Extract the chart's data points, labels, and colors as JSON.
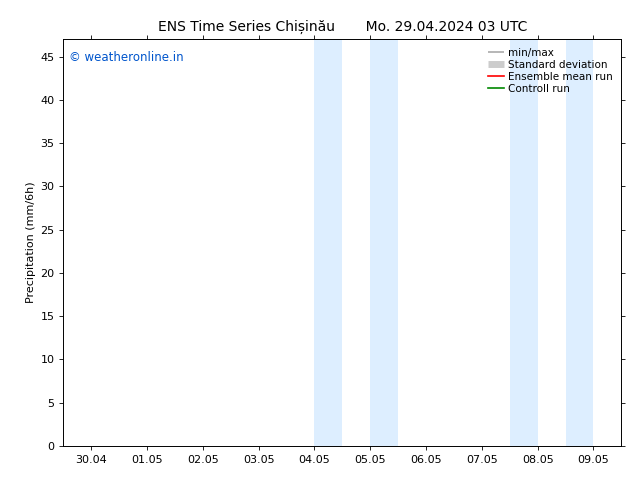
{
  "title": "ENS Time Series Chișinău       Mo. 29.04.2024 03 UTC",
  "ylabel": "Precipitation (mm/6h)",
  "xlabel": "",
  "ylim": [
    0,
    47
  ],
  "yticks": [
    0,
    5,
    10,
    15,
    20,
    25,
    30,
    35,
    40,
    45
  ],
  "xtick_labels": [
    "30.04",
    "01.05",
    "02.05",
    "03.05",
    "04.05",
    "05.05",
    "06.05",
    "07.05",
    "08.05",
    "09.05"
  ],
  "shaded_bands": [
    {
      "xmin": 4.0,
      "xmax": 4.5
    },
    {
      "xmin": 5.0,
      "xmax": 5.5
    },
    {
      "xmin": 7.5,
      "xmax": 8.0
    },
    {
      "xmin": 8.5,
      "xmax": 9.0
    }
  ],
  "shade_color": "#ddeeff",
  "watermark_text": "© weatheronline.in",
  "watermark_color": "#0055cc",
  "legend_entries": [
    {
      "label": "min/max",
      "color": "#aaaaaa",
      "lw": 1.2
    },
    {
      "label": "Standard deviation",
      "color": "#cccccc",
      "lw": 5
    },
    {
      "label": "Ensemble mean run",
      "color": "#ff0000",
      "lw": 1.2
    },
    {
      "label": "Controll run",
      "color": "#008800",
      "lw": 1.2
    }
  ],
  "background_color": "#ffffff",
  "plot_background": "#ffffff",
  "spine_color": "#000000",
  "title_fontsize": 10,
  "ylabel_fontsize": 8,
  "tick_fontsize": 8,
  "legend_fontsize": 7.5,
  "watermark_fontsize": 8.5
}
